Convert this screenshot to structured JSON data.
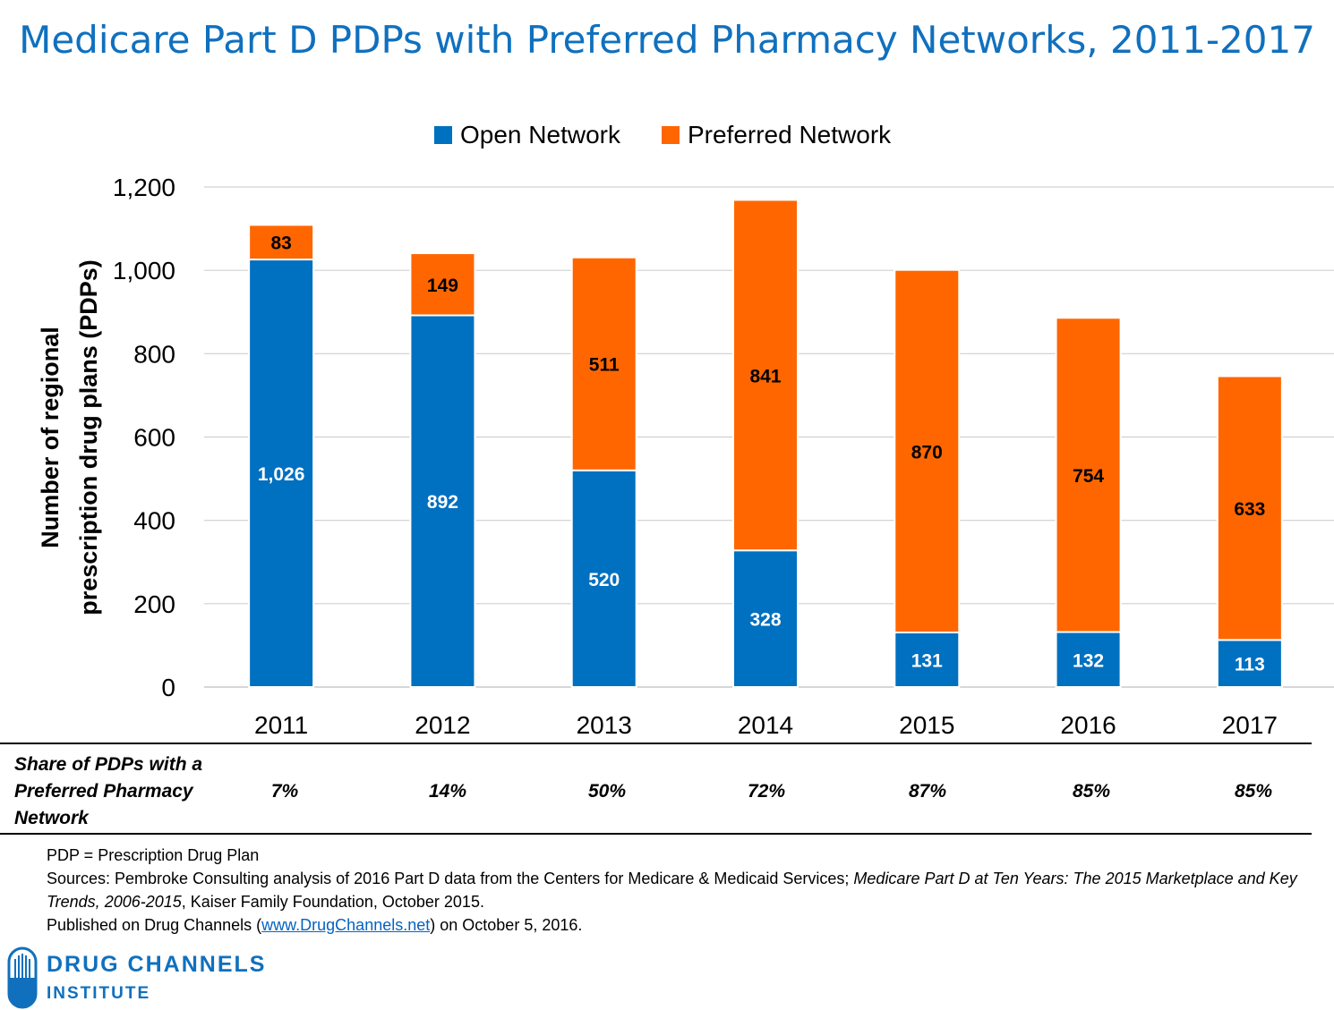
{
  "title": "Medicare Part D PDPs with Preferred Pharmacy Networks, 2011-2017",
  "chart_data": {
    "type": "bar",
    "stacked": true,
    "categories": [
      "2011",
      "2012",
      "2013",
      "2014",
      "2015",
      "2016",
      "2017"
    ],
    "series": [
      {
        "name": "Open Network",
        "color": "#0070C0",
        "values": [
          1026,
          892,
          520,
          328,
          131,
          132,
          113
        ],
        "labels": [
          "1,026",
          "892",
          "520",
          "328",
          "131",
          "132",
          "113"
        ]
      },
      {
        "name": "Preferred Network",
        "color": "#FF6600",
        "values": [
          83,
          149,
          511,
          841,
          870,
          754,
          633
        ],
        "labels": [
          "83",
          "149",
          "511",
          "841",
          "870",
          "754",
          "633"
        ]
      }
    ],
    "ylabel_line1": "Number of regional",
    "ylabel_line2": "prescription drug plans (PDPs)",
    "ylim": [
      0,
      1200
    ],
    "yticks": [
      0,
      200,
      400,
      600,
      800,
      1000,
      1200
    ],
    "ytick_labels": [
      "0",
      "200",
      "400",
      "600",
      "800",
      "1,000",
      "1,200"
    ],
    "grid": true,
    "legend_position": "top"
  },
  "share_row": {
    "label_lines": [
      "Share of PDPs with a",
      "Preferred Pharmacy",
      "Network"
    ],
    "values": [
      "7%",
      "14%",
      "50%",
      "72%",
      "87%",
      "85%",
      "85%"
    ]
  },
  "notes": {
    "line1": "PDP = Prescription Drug Plan",
    "sources_prefix": "Sources: Pembroke Consulting analysis of 2016 Part D data from the Centers for Medicare & Medicaid Services; ",
    "sources_italic": "Medicare Part D at Ten Years: The 2015 Marketplace and Key Trends, 2006-2015",
    "sources_suffix": ", Kaiser Family Foundation, October 2015.",
    "published_prefix": "Published on Drug Channels (",
    "published_link": "www.DrugChannels.net",
    "published_suffix": ") on October 5, 2016."
  },
  "logo": {
    "line1": "DRUG CHANNELS",
    "line2": "INSTITUTE",
    "color": "#1070BE"
  }
}
